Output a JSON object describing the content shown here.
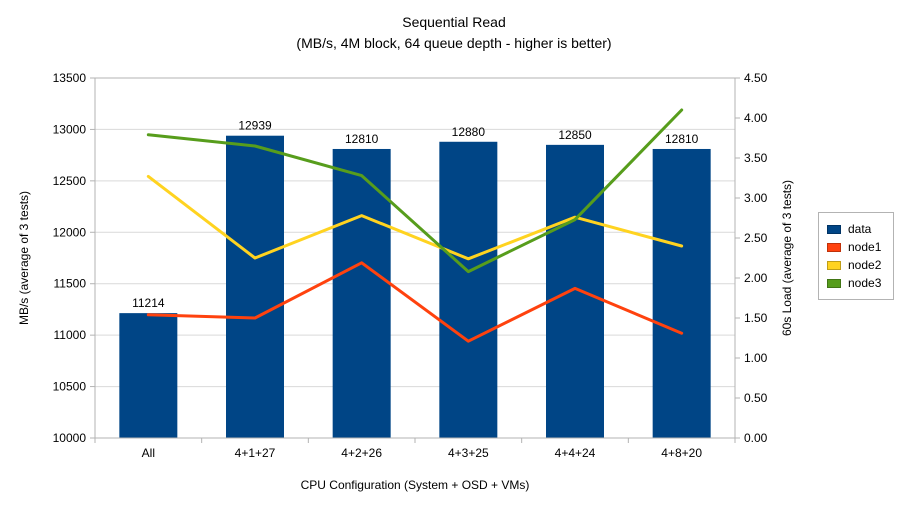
{
  "chart_data": {
    "type": "combo",
    "title": "Sequential Read",
    "subtitle": "(MB/s, 4M block, 64 queue depth - higher is better)",
    "xlabel": "CPU Configuration (System + OSD + VMs)",
    "ylabel_left": "MB/s (average of 3 tests)",
    "ylabel_right": "60s Load (average of 3 tests)",
    "categories": [
      "All",
      "4+1+27",
      "4+2+26",
      "4+3+25",
      "4+4+24",
      "4+8+20"
    ],
    "bar_series": {
      "name": "data",
      "color": "#004586",
      "values": [
        11214,
        12939,
        12810,
        12880,
        12850,
        12810
      ]
    },
    "line_series": [
      {
        "name": "node1",
        "color": "#ff420e",
        "values": [
          1.54,
          1.5,
          2.19,
          1.21,
          1.87,
          1.31
        ]
      },
      {
        "name": "node2",
        "color": "#ffd320",
        "values": [
          3.27,
          2.25,
          2.78,
          2.24,
          2.76,
          2.4
        ]
      },
      {
        "name": "node3",
        "color": "#579d1c",
        "values": [
          3.79,
          3.65,
          3.28,
          2.08,
          2.73,
          4.1
        ]
      }
    ],
    "axis_left": {
      "min": 10000,
      "max": 13500,
      "step": 500
    },
    "axis_right": {
      "min": 0,
      "max": 4.5,
      "step": 0.5,
      "decimals": 2
    },
    "legend": [
      "data",
      "node1",
      "node2",
      "node3"
    ],
    "legend_position": "right",
    "grid": true,
    "colors": {
      "grid": "#d9d9d9",
      "axis": "#b3b3b3",
      "text": "#000000"
    }
  }
}
